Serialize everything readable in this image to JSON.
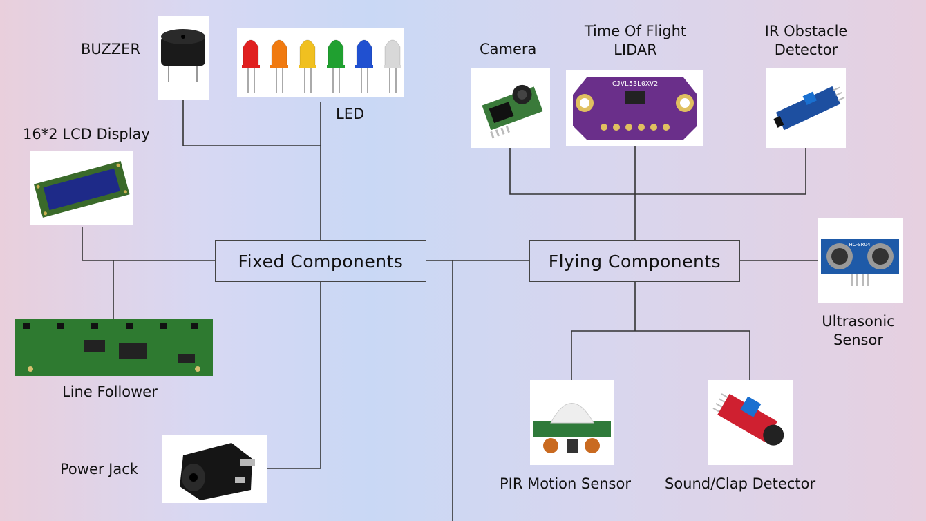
{
  "fixed": {
    "title": "Fixed Components",
    "buzzer": "BUZZER",
    "led": "LED",
    "lcd": "16*2 LCD Display",
    "line_follower": "Line Follower",
    "power_jack": "Power Jack"
  },
  "flying": {
    "title": "Flying Components",
    "camera": "Camera",
    "tof_line1": "Time Of Flight",
    "tof_line2": "LIDAR",
    "tof_chip_text": "CJVL53L0XV2",
    "ir_line1": "IR Obstacle",
    "ir_line2": "Detector",
    "ultra_line1": "Ultrasonic",
    "ultra_line2": "Sensor",
    "ultra_chip_text": "HC-SR04",
    "pir": "PIR Motion Sensor",
    "sound": "Sound/Clap Detector"
  },
  "colors": {
    "line": "#333333",
    "led": [
      "#e02020",
      "#f07a10",
      "#f0c020",
      "#20a030",
      "#2050d0",
      "#d8d8d8"
    ]
  }
}
